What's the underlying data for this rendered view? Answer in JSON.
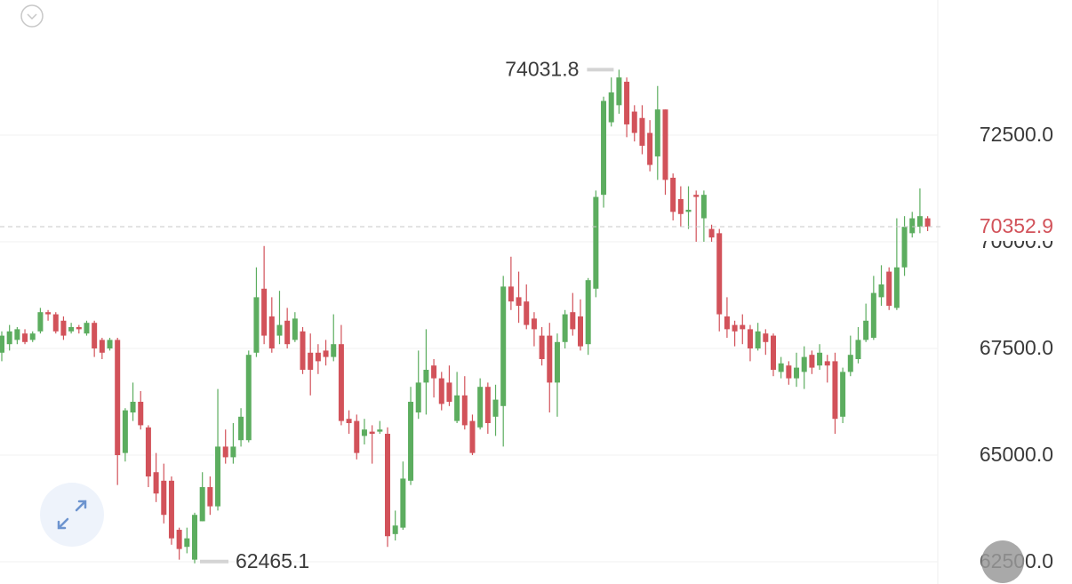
{
  "chart_data": {
    "type": "candlestick",
    "up_color": "#5cad5f",
    "down_color": "#d2525a",
    "price_line_color": "#c9c9c9",
    "price_label_color": "#d2525a",
    "ylim": [
      61980,
      75665
    ],
    "yticks": [
      {
        "value": 62500,
        "label": "62500.0"
      },
      {
        "value": 65000,
        "label": "65000.0"
      },
      {
        "value": 67500,
        "label": "67500.0"
      },
      {
        "value": 70000,
        "label": "70000.0"
      },
      {
        "value": 72500,
        "label": "72500.0"
      }
    ],
    "grid": true,
    "open": [
      67400,
      67600,
      67700,
      67850,
      67700,
      67900,
      68350,
      68300,
      68150,
      67900,
      68000,
      67850,
      68100,
      67700,
      67500,
      67700,
      65050,
      66000,
      66250,
      65650,
      64600,
      64400,
      64400,
      63250,
      62850,
      62550,
      63450,
      64250,
      63800,
      65200,
      64950,
      65350,
      65350,
      67400,
      68900,
      68250,
      67800,
      68150,
      67700,
      67900,
      67400,
      67400,
      67450,
      67300,
      67600,
      65850,
      65800,
      65450,
      65550,
      65550,
      65500,
      63150,
      63300,
      64400,
      66000,
      66700,
      67100,
      66800,
      66700,
      65800,
      66400,
      65800,
      65650,
      66600,
      65900,
      66150,
      68950,
      68700,
      68600,
      68200,
      67800,
      67800,
      66700,
      67650,
      68350,
      68250,
      67600,
      68900,
      71100,
      72800,
      73200,
      73750,
      73050,
      72900,
      72550,
      72000,
      73100,
      71500,
      71000,
      70700,
      71100,
      70550,
      70300,
      70200,
      68250,
      68050,
      68050,
      67950,
      67500,
      67850,
      67800,
      66950,
      67100,
      66800,
      66950,
      67350,
      67100,
      67200,
      67200,
      65900,
      66950,
      67250,
      67700,
      67750,
      68700,
      69300,
      68450,
      69400,
      70200,
      70350,
      70550
    ],
    "high": [
      67900,
      68050,
      68000,
      67950,
      67900,
      68450,
      68400,
      68350,
      68250,
      68100,
      68050,
      68150,
      68150,
      67750,
      67750,
      67750,
      66100,
      66700,
      66500,
      65700,
      65050,
      64800,
      64500,
      63300,
      63300,
      63650,
      64600,
      64500,
      66550,
      65600,
      65750,
      66100,
      67450,
      69400,
      69900,
      68700,
      68850,
      68450,
      68350,
      68000,
      67850,
      67600,
      67700,
      68300,
      68050,
      66050,
      65950,
      65850,
      65700,
      65800,
      65650,
      63700,
      64850,
      66600,
      67450,
      67950,
      67250,
      66950,
      67100,
      66950,
      66850,
      65950,
      66800,
      66700,
      66650,
      69200,
      69650,
      69300,
      69000,
      68350,
      68000,
      68100,
      67850,
      68400,
      68800,
      68650,
      69150,
      71200,
      73400,
      73850,
      74031.8,
      73850,
      73200,
      73200,
      72850,
      73650,
      73100,
      71600,
      71300,
      71300,
      71200,
      71200,
      70400,
      70300,
      68700,
      68150,
      68300,
      68050,
      68100,
      67950,
      67850,
      67300,
      67200,
      67400,
      67550,
      67450,
      67600,
      67350,
      67400,
      67050,
      67800,
      68000,
      68550,
      69200,
      69450,
      69400,
      70550,
      70600,
      70700,
      71250,
      70600
    ],
    "low": [
      67200,
      67450,
      67600,
      67600,
      67650,
      67850,
      68150,
      67850,
      67700,
      67850,
      67850,
      67800,
      67300,
      67250,
      67450,
      64300,
      64850,
      65800,
      65600,
      64250,
      63900,
      63400,
      62900,
      62550,
      62700,
      62465.1,
      63450,
      63600,
      63700,
      64800,
      64800,
      65200,
      65300,
      67300,
      67600,
      67400,
      67600,
      67500,
      67650,
      66900,
      66400,
      66900,
      67100,
      67200,
      65700,
      65500,
      64900,
      65250,
      64800,
      65500,
      62850,
      63000,
      63250,
      64300,
      65850,
      65950,
      66350,
      66050,
      66150,
      65750,
      65600,
      65000,
      65600,
      65500,
      65450,
      65200,
      68400,
      68100,
      67950,
      67550,
      67100,
      66000,
      65900,
      67500,
      67800,
      67450,
      67350,
      68700,
      70800,
      72700,
      73000,
      72450,
      72350,
      72050,
      71650,
      71450,
      71100,
      70500,
      70350,
      70300,
      70000,
      70000,
      70000,
      67900,
      67750,
      67550,
      67600,
      67200,
      67450,
      67350,
      66850,
      66800,
      66650,
      66600,
      66550,
      66900,
      67000,
      66700,
      65500,
      65750,
      66850,
      67150,
      67650,
      67700,
      68500,
      68400,
      68400,
      69200,
      70100,
      70200,
      70250
    ],
    "close": [
      67800,
      67900,
      67950,
      67650,
      67850,
      68350,
      68300,
      67900,
      67800,
      68000,
      67950,
      68100,
      67500,
      67400,
      67700,
      65000,
      66050,
      66250,
      65700,
      64500,
      64100,
      63600,
      63050,
      62800,
      63050,
      63600,
      64250,
      63800,
      65200,
      64950,
      65200,
      65900,
      67350,
      68700,
      67800,
      67500,
      68050,
      67600,
      68200,
      67000,
      67000,
      67200,
      67300,
      67600,
      65800,
      65750,
      65050,
      65600,
      65500,
      65600,
      63100,
      63350,
      64450,
      66250,
      66700,
      67000,
      66800,
      66200,
      66250,
      66400,
      65700,
      65050,
      66600,
      65750,
      66300,
      68950,
      68600,
      68500,
      68050,
      67950,
      67250,
      66700,
      67650,
      68300,
      67950,
      67550,
      69100,
      71050,
      73300,
      73500,
      73850,
      72750,
      72550,
      72250,
      71800,
      73100,
      71450,
      70700,
      70650,
      70750,
      71050,
      71100,
      70100,
      68300,
      67950,
      67900,
      67950,
      67500,
      67900,
      67650,
      67000,
      67150,
      66800,
      67050,
      67300,
      67050,
      67400,
      67100,
      65850,
      66950,
      67350,
      67700,
      68150,
      68800,
      69000,
      68500,
      69400,
      70350,
      70550,
      70600,
      70352.9
    ]
  }
}
